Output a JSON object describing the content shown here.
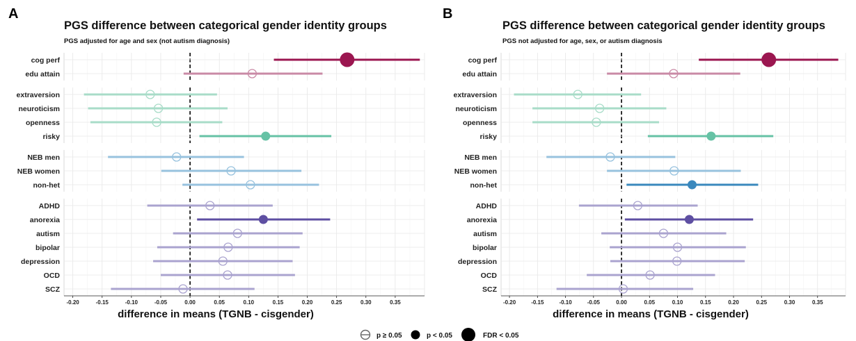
{
  "legend": [
    {
      "label": "p ≥ 0.05",
      "style": "open"
    },
    {
      "label": "p < 0.05",
      "style": "filled"
    },
    {
      "label": "FDR < 0.05",
      "style": "large"
    }
  ],
  "colors": {
    "cognitive": "#9b1650",
    "cognitive_light": "#c98aa6",
    "personality": "#66c2a5",
    "personality_light": "#a8dcc8",
    "reproductive": "#3a88bd",
    "reproductive_light": "#97c2de",
    "psychiatric": "#5e4fa2",
    "psychiatric_light": "#aaa3cf"
  },
  "chart_data": [
    {
      "panel": "A",
      "type": "scatter",
      "title": "PGS difference between categorical gender identity groups",
      "subtitle": "PGS adjusted for age and sex (not autism diagnosis)",
      "xlabel": "difference in means (TGNB - cisgender)",
      "xlim": [
        -0.215,
        0.4
      ],
      "xticks": [
        "-0.20",
        "-0.15",
        "-0.10",
        "-0.05",
        "0.00",
        "0.05",
        "0.10",
        "0.15",
        "0.20",
        "0.25",
        "0.30",
        "0.35"
      ],
      "groups": [
        {
          "name": "cognitive",
          "rows": [
            {
              "label": "cog perf",
              "est": 0.268,
              "lo": 0.143,
              "hi": 0.392,
              "sig": "fdr"
            },
            {
              "label": "edu attain",
              "est": 0.106,
              "lo": -0.011,
              "hi": 0.226,
              "sig": "ns"
            }
          ]
        },
        {
          "name": "personality",
          "rows": [
            {
              "label": "extraversion",
              "est": -0.068,
              "lo": -0.181,
              "hi": 0.046,
              "sig": "ns"
            },
            {
              "label": "neuroticism",
              "est": -0.054,
              "lo": -0.174,
              "hi": 0.064,
              "sig": "ns"
            },
            {
              "label": "openness",
              "est": -0.057,
              "lo": -0.17,
              "hi": 0.055,
              "sig": "ns"
            },
            {
              "label": "risky",
              "est": 0.129,
              "lo": 0.016,
              "hi": 0.241,
              "sig": "p05"
            }
          ]
        },
        {
          "name": "reproductive",
          "rows": [
            {
              "label": "NEB men",
              "est": -0.023,
              "lo": -0.14,
              "hi": 0.092,
              "sig": "ns"
            },
            {
              "label": "NEB women",
              "est": 0.07,
              "lo": -0.049,
              "hi": 0.19,
              "sig": "ns"
            },
            {
              "label": "non-het",
              "est": 0.103,
              "lo": -0.013,
              "hi": 0.22,
              "sig": "ns"
            }
          ]
        },
        {
          "name": "psychiatric",
          "rows": [
            {
              "label": "ADHD",
              "est": 0.034,
              "lo": -0.073,
              "hi": 0.141,
              "sig": "ns"
            },
            {
              "label": "anorexia",
              "est": 0.125,
              "lo": 0.012,
              "hi": 0.239,
              "sig": "p05"
            },
            {
              "label": "autism",
              "est": 0.081,
              "lo": -0.029,
              "hi": 0.192,
              "sig": "ns"
            },
            {
              "label": "bipolar",
              "est": 0.065,
              "lo": -0.056,
              "hi": 0.187,
              "sig": "ns"
            },
            {
              "label": "depression",
              "est": 0.056,
              "lo": -0.063,
              "hi": 0.175,
              "sig": "ns"
            },
            {
              "label": "OCD",
              "est": 0.064,
              "lo": -0.05,
              "hi": 0.179,
              "sig": "ns"
            },
            {
              "label": "SCZ",
              "est": -0.012,
              "lo": -0.135,
              "hi": 0.11,
              "sig": "ns"
            }
          ]
        }
      ]
    },
    {
      "panel": "B",
      "type": "scatter",
      "title": "PGS difference between categorical gender identity groups",
      "subtitle": "PGS not adjusted for age, sex, or autism diagnosis",
      "xlabel": "difference in means (TGNB - cisgender)",
      "xlim": [
        -0.215,
        0.4
      ],
      "xticks": [
        "-0.20",
        "-0.15",
        "-0.10",
        "-0.05",
        "0.00",
        "0.05",
        "0.10",
        "0.15",
        "0.20",
        "0.25",
        "0.30",
        "0.35"
      ],
      "groups": [
        {
          "name": "cognitive",
          "rows": [
            {
              "label": "cog perf",
              "est": 0.263,
              "lo": 0.138,
              "hi": 0.387,
              "sig": "fdr"
            },
            {
              "label": "edu attain",
              "est": 0.093,
              "lo": -0.026,
              "hi": 0.212,
              "sig": "ns"
            }
          ]
        },
        {
          "name": "personality",
          "rows": [
            {
              "label": "extraversion",
              "est": -0.078,
              "lo": -0.192,
              "hi": 0.035,
              "sig": "ns"
            },
            {
              "label": "neuroticism",
              "est": -0.039,
              "lo": -0.159,
              "hi": 0.08,
              "sig": "ns"
            },
            {
              "label": "openness",
              "est": -0.045,
              "lo": -0.159,
              "hi": 0.067,
              "sig": "ns"
            },
            {
              "label": "risky",
              "est": 0.16,
              "lo": 0.047,
              "hi": 0.271,
              "sig": "p05"
            }
          ]
        },
        {
          "name": "reproductive",
          "rows": [
            {
              "label": "NEB men",
              "est": -0.02,
              "lo": -0.134,
              "hi": 0.096,
              "sig": "ns"
            },
            {
              "label": "NEB women",
              "est": 0.094,
              "lo": -0.026,
              "hi": 0.213,
              "sig": "ns"
            },
            {
              "label": "non-het",
              "est": 0.126,
              "lo": 0.009,
              "hi": 0.244,
              "sig": "p05"
            }
          ]
        },
        {
          "name": "psychiatric",
          "rows": [
            {
              "label": "ADHD",
              "est": 0.029,
              "lo": -0.076,
              "hi": 0.136,
              "sig": "ns"
            },
            {
              "label": "anorexia",
              "est": 0.121,
              "lo": 0.006,
              "hi": 0.235,
              "sig": "p05"
            },
            {
              "label": "autism",
              "est": 0.075,
              "lo": -0.036,
              "hi": 0.187,
              "sig": "ns"
            },
            {
              "label": "bipolar",
              "est": 0.1,
              "lo": -0.021,
              "hi": 0.222,
              "sig": "ns"
            },
            {
              "label": "depression",
              "est": 0.099,
              "lo": -0.02,
              "hi": 0.22,
              "sig": "ns"
            },
            {
              "label": "OCD",
              "est": 0.051,
              "lo": -0.062,
              "hi": 0.167,
              "sig": "ns"
            },
            {
              "label": "SCZ",
              "est": 0.003,
              "lo": -0.116,
              "hi": 0.128,
              "sig": "ns"
            }
          ]
        }
      ]
    }
  ]
}
